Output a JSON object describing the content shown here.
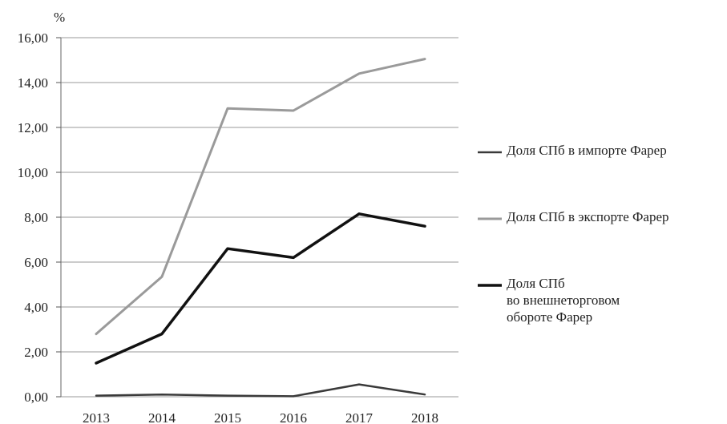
{
  "chart_data": {
    "type": "line",
    "unit_label": "%",
    "x": [
      "2013",
      "2014",
      "2015",
      "2016",
      "2017",
      "2018"
    ],
    "yticks": [
      "0,00",
      "2,00",
      "4,00",
      "6,00",
      "8,00",
      "10,00",
      "12,00",
      "14,00",
      "16,00"
    ],
    "ylim": [
      0,
      16
    ],
    "grid": true,
    "legend_position": "right",
    "series": [
      {
        "name": "Доля СПб в импорте Фарер",
        "color": "#3a3a3a",
        "width": 2.5,
        "values": [
          0.05,
          0.1,
          0.05,
          0.02,
          0.55,
          0.1
        ]
      },
      {
        "name": "Доля СПб в экспорте Фарер",
        "color": "#9a9a9a",
        "width": 3,
        "values": [
          2.8,
          5.35,
          12.85,
          12.75,
          14.4,
          15.05
        ]
      },
      {
        "name": "Доля СПб\nво внешнеторговом\nобороте Фарер",
        "color": "#111111",
        "width": 3.5,
        "values": [
          1.5,
          2.8,
          6.6,
          6.2,
          8.15,
          7.6
        ]
      }
    ]
  }
}
